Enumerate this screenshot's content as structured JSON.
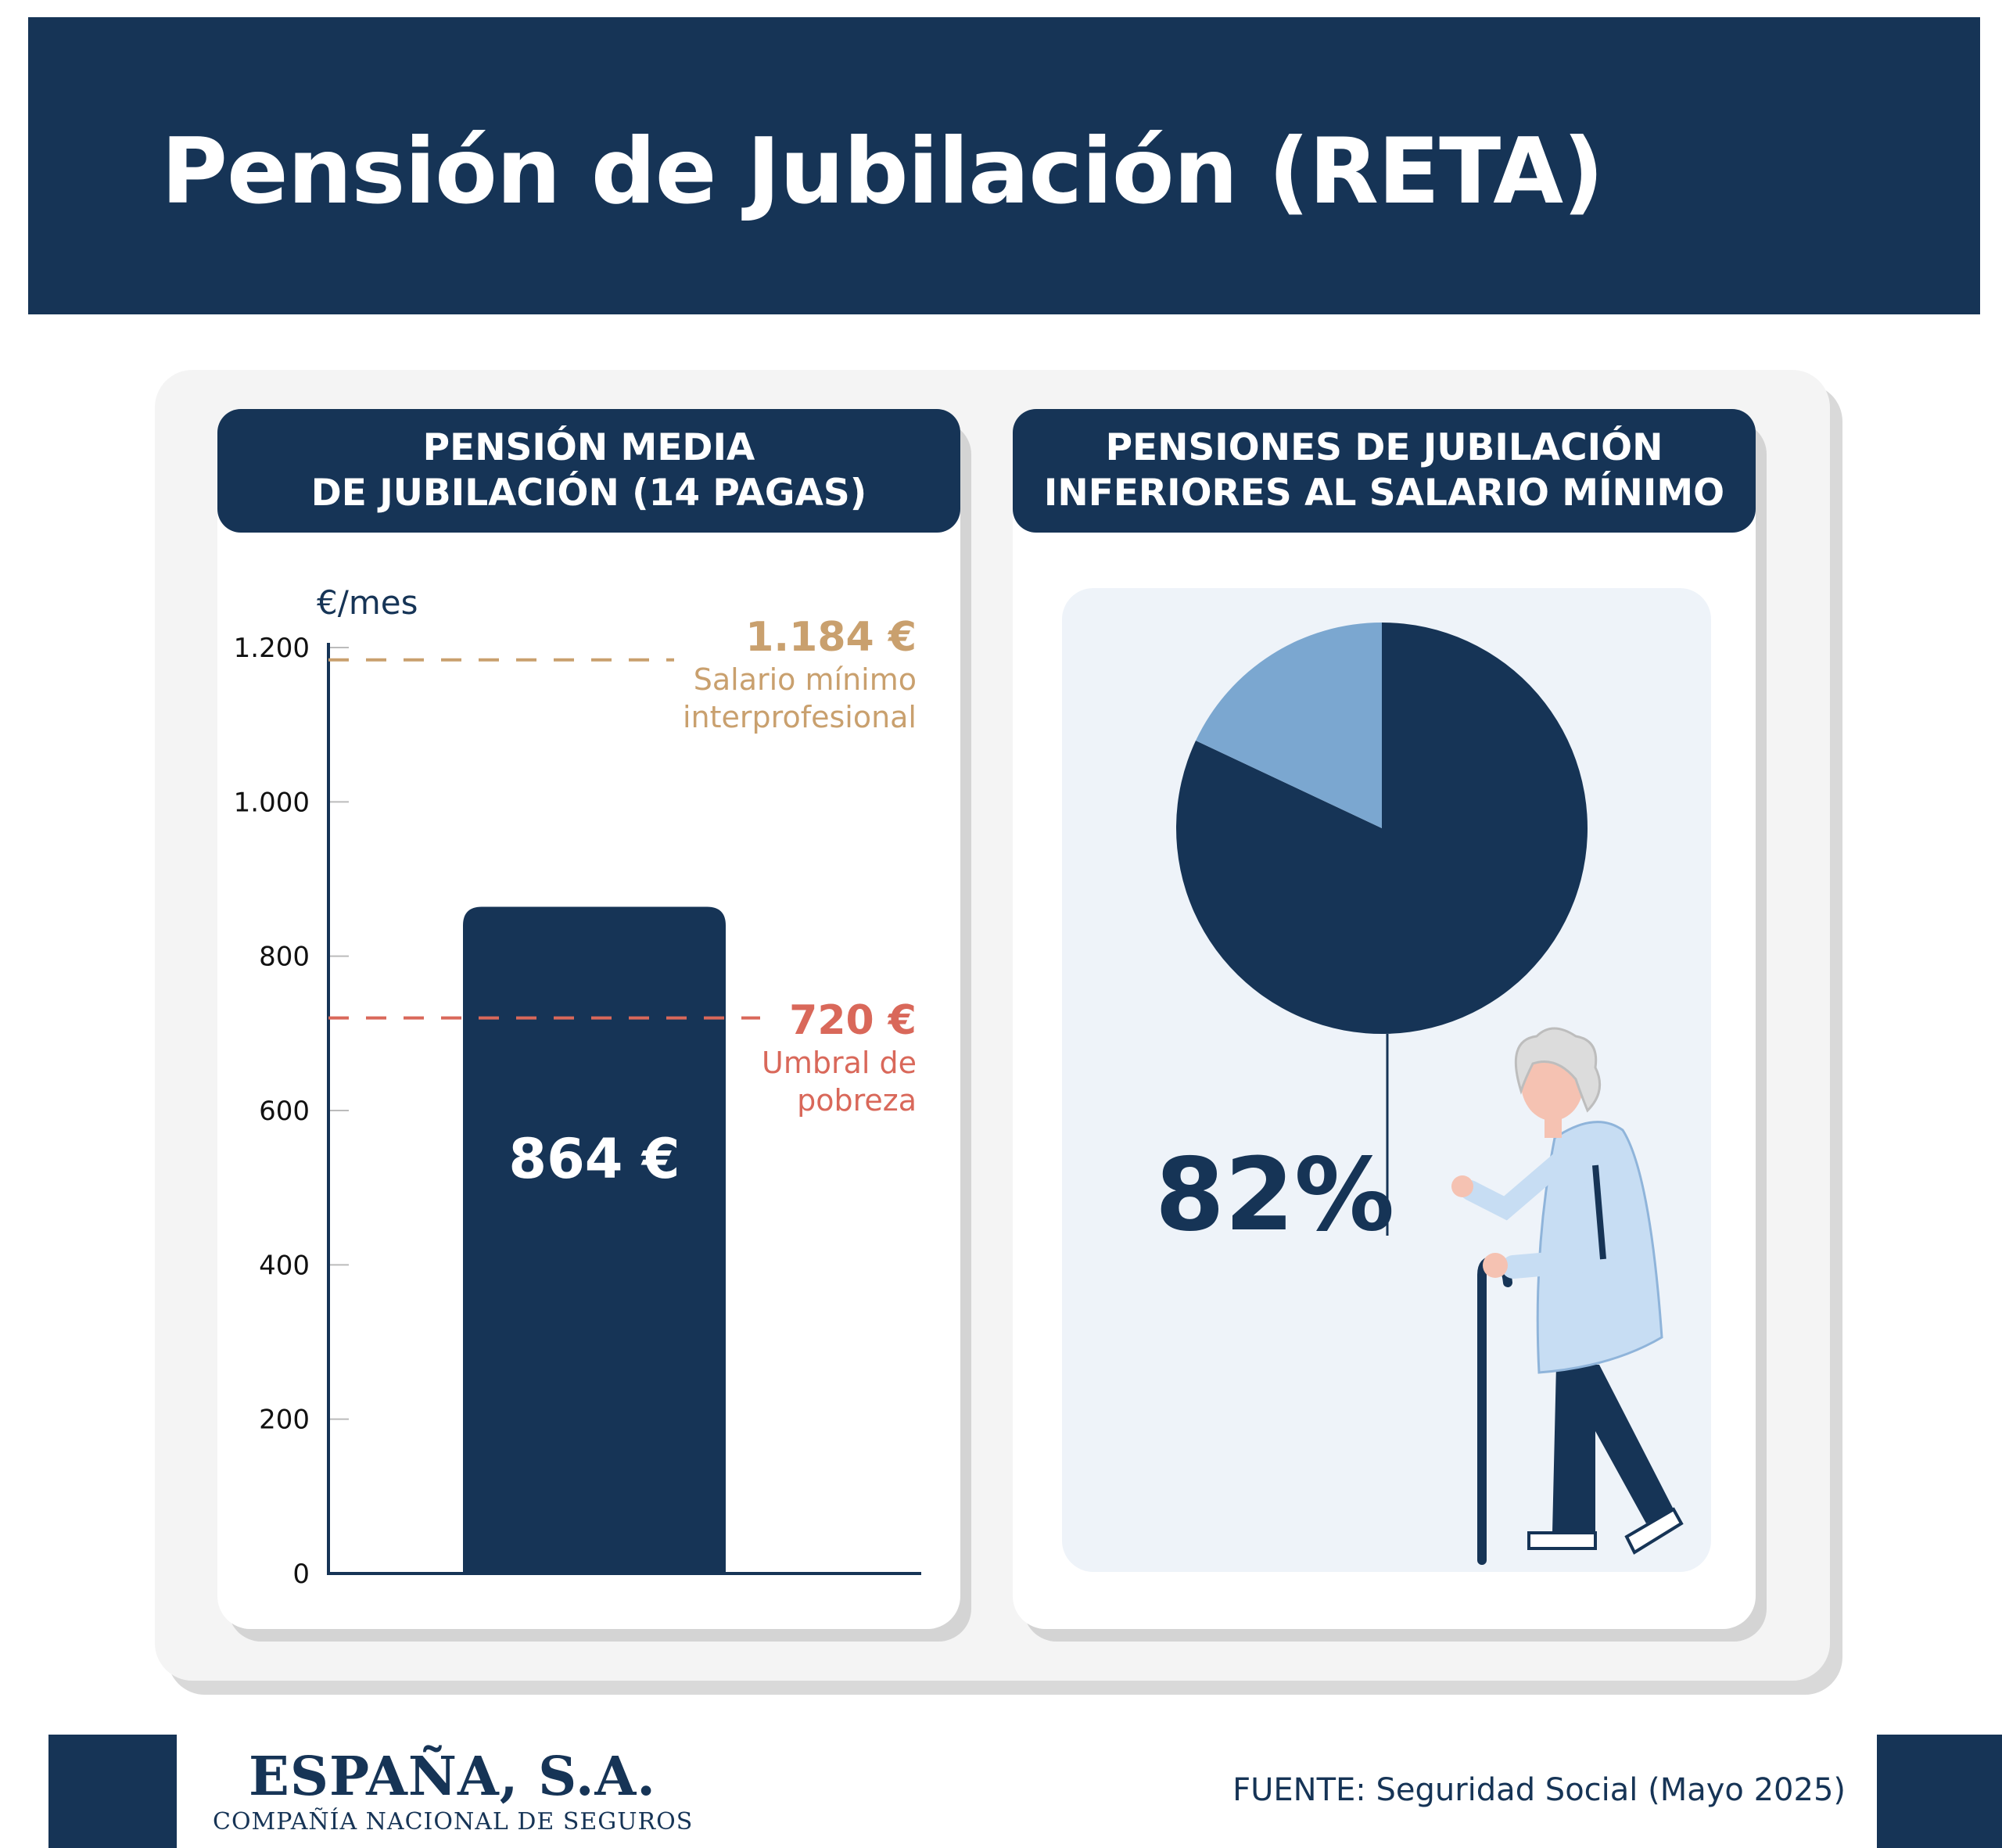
{
  "title": "Pensión de Jubilación (RETA)",
  "left_panel": {
    "heading_line1": "PENSIÓN MEDIA",
    "heading_line2": "DE JUBILACIÓN (14 PAGAS)"
  },
  "right_panel": {
    "heading_line1": "PENSIONES DE JUBILACIÓN",
    "heading_line2": "INFERIORES AL SALARIO MÍNIMO"
  },
  "chart_data": [
    {
      "type": "bar",
      "ylabel": "€/mes",
      "ylim": [
        0,
        1200
      ],
      "y_ticks": [
        0,
        200,
        400,
        600,
        800,
        1000,
        1200
      ],
      "y_tick_labels": [
        "0",
        "200",
        "400",
        "600",
        "800",
        "1.000",
        "1.200"
      ],
      "categories": [
        ""
      ],
      "values": [
        864
      ],
      "bar_label": "864 €",
      "bar_color": "#163456",
      "reference_lines": [
        {
          "value": 1184,
          "value_label": "1.184 €",
          "label_line1": "Salario mínimo",
          "label_line2": "interprofesional",
          "color": "#c9a06e"
        },
        {
          "value": 720,
          "value_label": "720 €",
          "label_line1": "Umbral de",
          "label_line2": "pobreza",
          "color": "#d9685a"
        }
      ]
    },
    {
      "type": "pie",
      "values": [
        82,
        18
      ],
      "colors": [
        "#163456",
        "#7ba7d0"
      ],
      "highlight_label": "82%"
    }
  ],
  "footer": {
    "brand_name": "ESPAÑA, S.A.",
    "brand_subtitle": "COMPAÑÍA NACIONAL DE SEGUROS",
    "source": "FUENTE: Seguridad Social (Mayo 2025)"
  }
}
